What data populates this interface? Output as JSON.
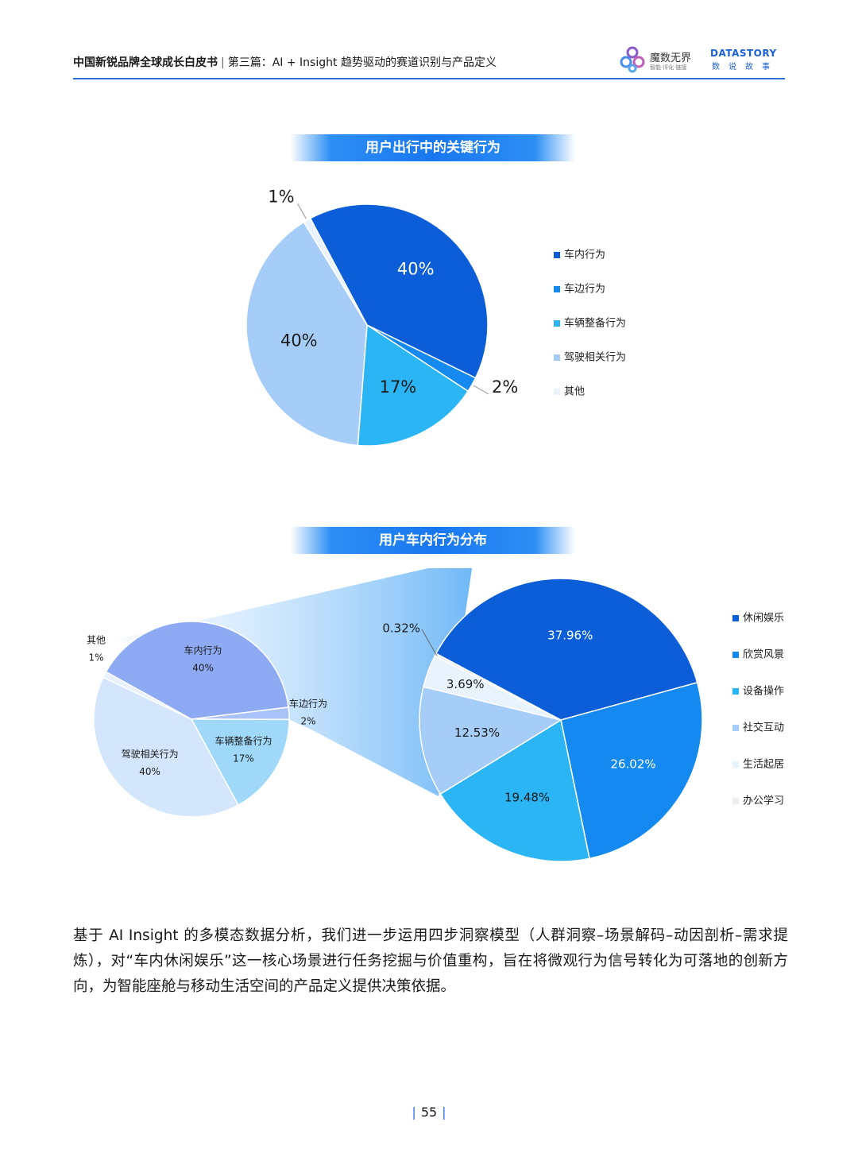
{
  "header": {
    "doc_title": "中国新锐品牌全球成长白皮书",
    "separator": "|",
    "section_title": "第三篇：AI + Insight 趋势驱动的赛道识别与产品定义",
    "logo1_name": "魔数无界",
    "logo1_tagline": "智能·评化·链接",
    "logo2_brand": "DATASTORY",
    "logo2_cn": "数说故事"
  },
  "chart1_title": "用户出行中的关键行为",
  "chart2_title": "用户车内行为分布",
  "chart_data": [
    {
      "type": "pie",
      "title": "用户出行中的关键行为",
      "labels": [
        "车内行为",
        "车边行为",
        "车辆整备行为",
        "驾驶相关行为",
        "其他"
      ],
      "values": [
        40,
        2,
        17,
        40,
        1
      ],
      "value_labels": [
        "40%",
        "2%",
        "17%",
        "40%",
        "1%"
      ],
      "colors": [
        "#0b5ed7",
        "#1489f0",
        "#2bb5f5",
        "#a6cdf7",
        "#e9f3fd"
      ],
      "legend": "right"
    },
    {
      "type": "pie",
      "title": "用户车内行为分布",
      "labels": [
        "车内行为",
        "车边行为",
        "车辆整备行为",
        "驾驶相关行为",
        "其他"
      ],
      "values": [
        40,
        2,
        17,
        40,
        1
      ],
      "value_labels": [
        "40%",
        "2%",
        "17%",
        "40%",
        "1%"
      ],
      "colors": [
        "#8eaaf3",
        "#a9c2f7",
        "#9fd8f9",
        "#d3e6fb",
        "#e9f1fc"
      ],
      "legend": "none"
    },
    {
      "type": "pie",
      "title": "用户车内行为分布",
      "labels": [
        "休闲娱乐",
        "欣赏风景",
        "设备操作",
        "社交互动",
        "生活起居",
        "办公学习"
      ],
      "values": [
        37.96,
        26.02,
        19.48,
        12.53,
        3.69,
        0.32
      ],
      "value_labels": [
        "37.96%",
        "26.02%",
        "19.48%",
        "12.53%",
        "3.69%",
        "0.32%"
      ],
      "colors": [
        "#0b5ed7",
        "#1489f0",
        "#2bb5f5",
        "#a6cdf7",
        "#e9f3fd",
        "#eeeeee"
      ],
      "legend": "right"
    }
  ],
  "paragraph": "基于 AI Insight 的多模态数据分析，我们进一步运用四步洞察模型（人群洞察–场景解码–动因剖析–需求提炼），对“车内休闲娱乐”这一核心场景进行任务挖掘与价值重构，旨在将微观行为信号转化为可落地的创新方向，为智能座舱与移动生活空间的产品定义提供决策依据。",
  "page_number": "55"
}
